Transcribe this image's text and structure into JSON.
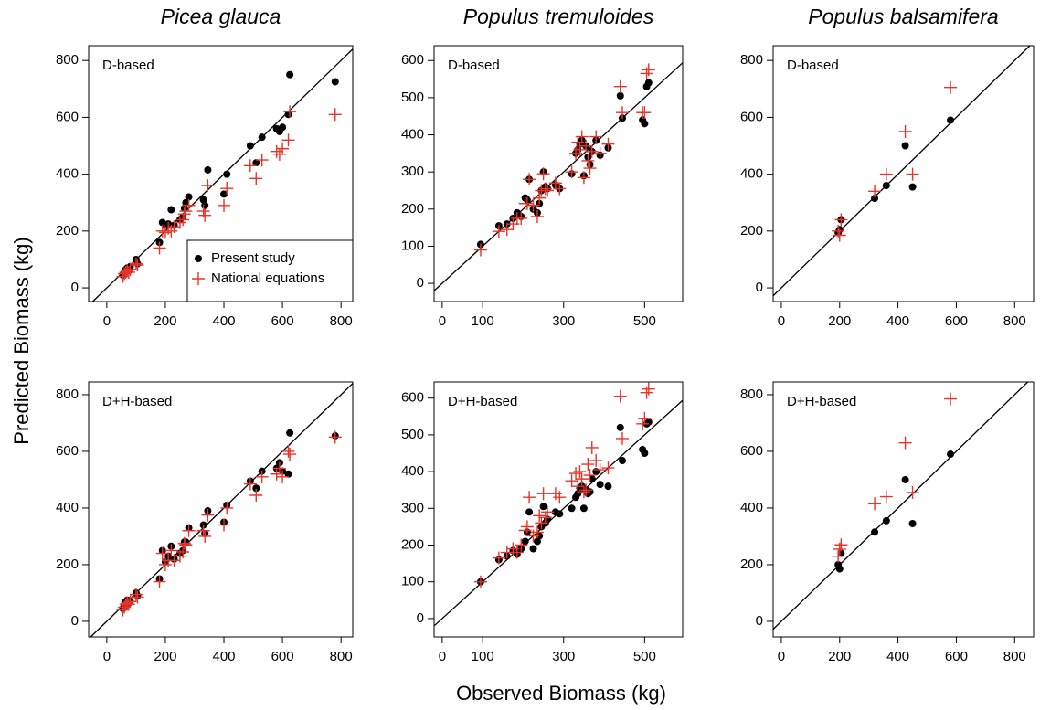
{
  "figure": {
    "xlabel": "Observed Biomass (kg)",
    "ylabel": "Predicted Biomass (kg)"
  },
  "chart_data": [
    {
      "type": "scatter",
      "title": "Picea glauca",
      "annotation": "D-based",
      "xlim": [
        -62,
        840
      ],
      "ylim": [
        -48,
        852
      ],
      "xticks": [
        0,
        200,
        400,
        600,
        800
      ],
      "yticks": [
        0,
        200,
        400,
        600,
        800
      ],
      "legend": "bottom-right",
      "x": [
        55,
        60,
        65,
        70,
        75,
        80,
        100,
        105,
        180,
        190,
        200,
        210,
        220,
        230,
        250,
        260,
        265,
        270,
        280,
        330,
        335,
        345,
        400,
        410,
        490,
        510,
        530,
        580,
        590,
        600,
        620,
        625,
        780
      ],
      "series": [
        {
          "name": "Present study",
          "color": "#000000",
          "marker": "circle",
          "values": [
            45,
            55,
            65,
            70,
            60,
            75,
            100,
            85,
            160,
            230,
            220,
            225,
            275,
            220,
            240,
            250,
            280,
            300,
            320,
            310,
            290,
            415,
            330,
            400,
            500,
            440,
            530,
            560,
            550,
            565,
            610,
            750,
            725
          ]
        },
        {
          "name": "National equations",
          "color": "#e8332a",
          "marker": "plus",
          "values": [
            40,
            50,
            55,
            60,
            55,
            65,
            85,
            80,
            140,
            200,
            195,
            210,
            200,
            215,
            230,
            240,
            260,
            270,
            290,
            270,
            255,
            360,
            290,
            350,
            430,
            385,
            450,
            480,
            470,
            490,
            520,
            620,
            610
          ]
        }
      ]
    },
    {
      "type": "scatter",
      "title": "Populus tremuloides",
      "annotation": "D-based",
      "xlim": [
        -20,
        594
      ],
      "ylim": [
        -49,
        640
      ],
      "xticks": [
        0,
        100,
        300,
        500
      ],
      "yticks": [
        0,
        100,
        200,
        300,
        400,
        500,
        600
      ],
      "x": [
        95,
        140,
        160,
        175,
        185,
        195,
        205,
        210,
        215,
        225,
        235,
        240,
        245,
        250,
        255,
        260,
        280,
        290,
        320,
        330,
        335,
        340,
        345,
        350,
        355,
        360,
        365,
        370,
        380,
        390,
        410,
        440,
        445,
        495,
        500,
        505,
        510
      ],
      "series": [
        {
          "color": "#000000",
          "marker": "circle",
          "values": [
            105,
            155,
            160,
            175,
            190,
            180,
            230,
            225,
            280,
            200,
            190,
            215,
            250,
            300,
            260,
            255,
            265,
            255,
            295,
            350,
            360,
            375,
            385,
            290,
            370,
            340,
            320,
            355,
            385,
            345,
            365,
            505,
            445,
            440,
            430,
            530,
            540
          ]
        },
        {
          "color": "#e8332a",
          "marker": "plus",
          "values": [
            90,
            140,
            145,
            160,
            175,
            175,
            215,
            215,
            280,
            210,
            180,
            230,
            250,
            295,
            255,
            250,
            270,
            255,
            300,
            350,
            380,
            360,
            395,
            285,
            370,
            330,
            310,
            355,
            395,
            350,
            375,
            530,
            460,
            460,
            460,
            565,
            575
          ]
        }
      ]
    },
    {
      "type": "scatter",
      "title": "Populus balsamifera",
      "annotation": "D-based",
      "xlim": [
        -28,
        865
      ],
      "ylim": [
        -48,
        852
      ],
      "xticks": [
        0,
        200,
        400,
        600,
        800
      ],
      "yticks": [
        0,
        200,
        400,
        600,
        800
      ],
      "x": [
        195,
        200,
        205,
        320,
        360,
        425,
        450,
        580
      ],
      "series": [
        {
          "color": "#000000",
          "marker": "circle",
          "values": [
            195,
            205,
            240,
            315,
            360,
            500,
            355,
            590
          ]
        },
        {
          "color": "#e8332a",
          "marker": "plus",
          "values": [
            200,
            185,
            240,
            340,
            400,
            550,
            400,
            705
          ]
        }
      ]
    },
    {
      "type": "scatter",
      "annotation": "D+H-based",
      "xlim": [
        -62,
        840
      ],
      "ylim": [
        -55,
        845
      ],
      "xticks": [
        0,
        200,
        400,
        600,
        800
      ],
      "yticks": [
        0,
        200,
        400,
        600,
        800
      ],
      "x": [
        55,
        60,
        65,
        70,
        75,
        80,
        100,
        105,
        180,
        190,
        200,
        210,
        220,
        230,
        250,
        260,
        265,
        270,
        280,
        330,
        335,
        345,
        400,
        410,
        490,
        510,
        530,
        580,
        590,
        600,
        620,
        625,
        780
      ],
      "series": [
        {
          "color": "#000000",
          "marker": "circle",
          "values": [
            45,
            55,
            70,
            75,
            65,
            70,
            100,
            90,
            150,
            250,
            210,
            230,
            265,
            220,
            240,
            250,
            280,
            280,
            330,
            340,
            310,
            390,
            350,
            410,
            495,
            470,
            530,
            540,
            560,
            530,
            520,
            665,
            655
          ]
        },
        {
          "color": "#e8332a",
          "marker": "plus",
          "values": [
            40,
            50,
            60,
            65,
            60,
            70,
            95,
            85,
            140,
            240,
            200,
            215,
            250,
            215,
            230,
            245,
            275,
            270,
            320,
            320,
            300,
            375,
            340,
            400,
            485,
            445,
            510,
            520,
            540,
            510,
            600,
            590,
            650
          ]
        }
      ]
    },
    {
      "type": "scatter",
      "annotation": "D+H-based",
      "xlim": [
        -20,
        594
      ],
      "ylim": [
        -50,
        644
      ],
      "xticks": [
        0,
        100,
        300,
        500
      ],
      "yticks": [
        0,
        100,
        200,
        300,
        400,
        500,
        600
      ],
      "x": [
        95,
        140,
        160,
        175,
        185,
        195,
        205,
        210,
        215,
        225,
        235,
        240,
        245,
        250,
        255,
        260,
        280,
        290,
        320,
        330,
        335,
        340,
        345,
        350,
        355,
        360,
        365,
        370,
        380,
        390,
        410,
        440,
        445,
        495,
        500,
        505,
        510
      ],
      "series": [
        {
          "color": "#000000",
          "marker": "circle",
          "values": [
            100,
            160,
            170,
            185,
            175,
            190,
            210,
            235,
            290,
            190,
            210,
            225,
            250,
            305,
            260,
            270,
            290,
            285,
            300,
            330,
            340,
            355,
            360,
            300,
            350,
            340,
            345,
            380,
            400,
            365,
            360,
            520,
            430,
            460,
            450,
            530,
            535
          ]
        },
        {
          "color": "#e8332a",
          "marker": "plus",
          "values": [
            100,
            165,
            180,
            190,
            180,
            200,
            240,
            250,
            330,
            225,
            235,
            280,
            260,
            340,
            275,
            290,
            340,
            330,
            375,
            395,
            360,
            400,
            380,
            345,
            350,
            420,
            390,
            465,
            430,
            405,
            410,
            605,
            490,
            530,
            545,
            615,
            625
          ]
        }
      ]
    },
    {
      "type": "scatter",
      "annotation": "D+H-based",
      "xlim": [
        -28,
        865
      ],
      "ylim": [
        -55,
        845
      ],
      "xticks": [
        0,
        200,
        400,
        600,
        800
      ],
      "yticks": [
        0,
        200,
        400,
        600,
        800
      ],
      "x": [
        195,
        200,
        205,
        320,
        360,
        425,
        450,
        580
      ],
      "series": [
        {
          "color": "#000000",
          "marker": "circle",
          "values": [
            200,
            185,
            240,
            315,
            355,
            500,
            345,
            590
          ]
        },
        {
          "color": "#e8332a",
          "marker": "plus",
          "values": [
            230,
            255,
            270,
            415,
            440,
            630,
            455,
            785
          ]
        }
      ]
    }
  ]
}
